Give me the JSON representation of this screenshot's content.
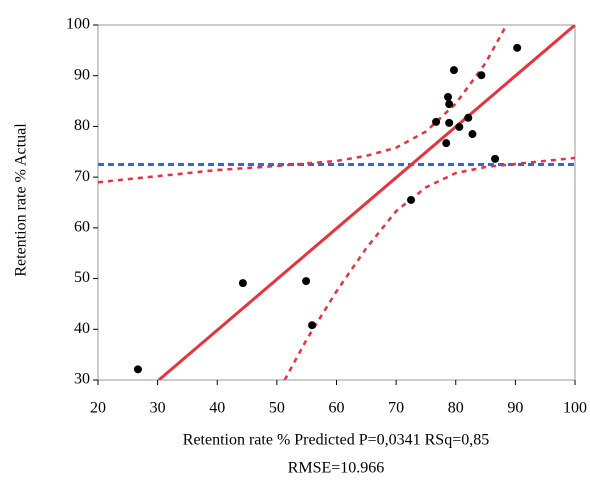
{
  "chart_data": {
    "type": "scatter",
    "y_label": "Retention rate % Actual",
    "x_label": "Retention rate % Predicted P=0,0341 RSq=0,85",
    "x_label_2": "RMSE=10.966",
    "x": [
      26.7,
      44.3,
      54.9,
      55.9,
      72.5,
      76.7,
      78.4,
      78.7,
      78.9,
      78.9,
      79.7,
      80.6,
      82.1,
      82.8,
      84.3,
      86.6,
      90.3
    ],
    "y": [
      32.1,
      49.1,
      49.5,
      40.8,
      65.5,
      80.9,
      76.7,
      85.8,
      84.4,
      80.7,
      91.1,
      79.9,
      81.7,
      78.5,
      90.1,
      73.6,
      95.5
    ],
    "color": "#000000",
    "fit": {
      "x": [
        30.2,
        100
      ],
      "y": [
        30,
        100
      ],
      "color": "#e8323c"
    },
    "mean_line": {
      "y": 72.5,
      "color": "#3366e6"
    },
    "confidence": [
      {
        "x": [
          20,
          30,
          40,
          50,
          60,
          65,
          70,
          75,
          80,
          85,
          88.5
        ],
        "y": [
          69,
          70.2,
          71.4,
          72.2,
          73.2,
          74.2,
          75.8,
          79,
          84.5,
          92.5,
          100
        ],
        "color": "#e8323c"
      },
      {
        "x": [
          51.3,
          55,
          60,
          65,
          70,
          75,
          80,
          85,
          90,
          100
        ],
        "y": [
          30,
          38,
          47.5,
          56,
          63.3,
          68,
          70.8,
          72,
          72.6,
          73.8
        ],
        "color": "#e8323c"
      }
    ],
    "xlim": [
      20,
      100
    ],
    "ylim": [
      30,
      100
    ],
    "xticks": [
      20,
      30,
      40,
      50,
      60,
      70,
      80,
      90,
      100
    ],
    "yticks": [
      30,
      40,
      50,
      60,
      70,
      80,
      90,
      100
    ]
  }
}
